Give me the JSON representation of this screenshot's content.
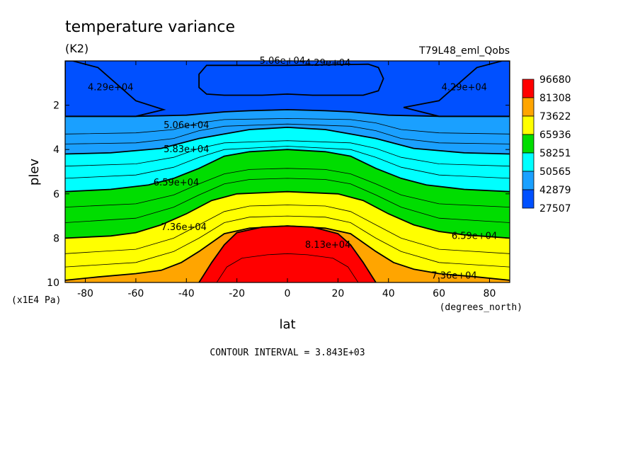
{
  "chart_data": {
    "type": "contour",
    "title": "temperature variance",
    "units": "(K2)",
    "case_name": "T79L48_eml_Qobs",
    "xlabel": "lat",
    "xunits": "(degrees_north)",
    "ylabel": "plev",
    "yunits": "(x1E4 Pa)",
    "xlim": [
      -88,
      88
    ],
    "ylim": [
      10,
      0
    ],
    "x_ticks": [
      -80,
      -60,
      -40,
      -20,
      0,
      20,
      40,
      60,
      80
    ],
    "x_tick_labels": [
      "-80",
      "-60",
      "-40",
      "-20",
      "0",
      "20",
      "40",
      "60",
      "80"
    ],
    "y_ticks": [
      2,
      4,
      6,
      8,
      10
    ],
    "y_tick_labels": [
      "2",
      "4",
      "6",
      "8",
      "10"
    ],
    "colorbar": {
      "labels": [
        "96680",
        "81308",
        "73622",
        "65936",
        "58251",
        "50565",
        "42879",
        "27507"
      ],
      "colors": [
        "#ff0000",
        "#ffa500",
        "#ffff00",
        "#00dd00",
        "#00ffff",
        "#1aa0ff",
        "#0050ff"
      ]
    },
    "contour_interval_text": "CONTOUR INTERVAL = 3.843E+03",
    "contour_labels": [
      {
        "text": "4.29e+04",
        "lat": -70,
        "plev": 1.2
      },
      {
        "text": "5.06e+04",
        "lat": -2,
        "plev": 0.0
      },
      {
        "text": "4.29e+04",
        "lat": 16,
        "plev": 0.1
      },
      {
        "text": "4.29e+04",
        "lat": 70,
        "plev": 1.2
      },
      {
        "text": "5.06e+04",
        "lat": -40,
        "plev": 2.9
      },
      {
        "text": "5.83e+04",
        "lat": -40,
        "plev": 4.0
      },
      {
        "text": "6.59e+04",
        "lat": -44,
        "plev": 5.5
      },
      {
        "text": "7.36e+04",
        "lat": -41,
        "plev": 7.5
      },
      {
        "text": "8.13e+04",
        "lat": 16,
        "plev": 8.3
      },
      {
        "text": "6.59e+04",
        "lat": 74,
        "plev": 7.9
      },
      {
        "text": "7.36e+04",
        "lat": 66,
        "plev": 9.7
      }
    ],
    "bands": [
      {
        "value": 50565,
        "color": "#1aa0ff",
        "boundary": [
          [
            -88,
            2.5
          ],
          [
            -60,
            2.5
          ],
          [
            -40,
            2.45
          ],
          [
            -25,
            2.3
          ],
          [
            -15,
            2.25
          ],
          [
            0,
            2.2
          ],
          [
            15,
            2.25
          ],
          [
            25,
            2.3
          ],
          [
            40,
            2.45
          ],
          [
            60,
            2.5
          ],
          [
            88,
            2.5
          ]
        ]
      },
      {
        "value": 58251,
        "color": "#00ffff",
        "boundary": [
          [
            -88,
            4.2
          ],
          [
            -70,
            4.15
          ],
          [
            -50,
            3.95
          ],
          [
            -35,
            3.5
          ],
          [
            -25,
            3.3
          ],
          [
            -15,
            3.1
          ],
          [
            0,
            3.0
          ],
          [
            15,
            3.1
          ],
          [
            25,
            3.3
          ],
          [
            35,
            3.5
          ],
          [
            50,
            3.95
          ],
          [
            70,
            4.15
          ],
          [
            88,
            4.2
          ]
        ]
      },
      {
        "value": 65936,
        "color": "#00dd00",
        "boundary": [
          [
            -88,
            5.9
          ],
          [
            -70,
            5.8
          ],
          [
            -55,
            5.6
          ],
          [
            -45,
            5.3
          ],
          [
            -35,
            4.85
          ],
          [
            -25,
            4.3
          ],
          [
            -15,
            4.1
          ],
          [
            0,
            4.0
          ],
          [
            15,
            4.1
          ],
          [
            25,
            4.3
          ],
          [
            35,
            4.85
          ],
          [
            45,
            5.3
          ],
          [
            55,
            5.6
          ],
          [
            70,
            5.8
          ],
          [
            88,
            5.9
          ]
        ]
      },
      {
        "value": 73622,
        "color": "#ffff00",
        "boundary": [
          [
            -88,
            8.0
          ],
          [
            -70,
            7.9
          ],
          [
            -60,
            7.75
          ],
          [
            -50,
            7.4
          ],
          [
            -40,
            6.9
          ],
          [
            -30,
            6.3
          ],
          [
            -20,
            6.0
          ],
          [
            0,
            5.9
          ],
          [
            20,
            6.0
          ],
          [
            30,
            6.3
          ],
          [
            40,
            6.9
          ],
          [
            50,
            7.4
          ],
          [
            60,
            7.7
          ],
          [
            70,
            7.85
          ],
          [
            88,
            8.0
          ]
        ]
      },
      {
        "value": 81308,
        "color": "#ffa500",
        "boundary": [
          [
            -88,
            9.9
          ],
          [
            -75,
            9.75
          ],
          [
            -60,
            9.6
          ],
          [
            -50,
            9.45
          ],
          [
            -42,
            9.1
          ],
          [
            -35,
            8.6
          ],
          [
            -25,
            7.8
          ],
          [
            -15,
            7.55
          ],
          [
            0,
            7.45
          ],
          [
            15,
            7.55
          ],
          [
            25,
            7.8
          ],
          [
            35,
            8.6
          ],
          [
            42,
            9.1
          ],
          [
            50,
            9.4
          ],
          [
            60,
            9.6
          ],
          [
            75,
            9.75
          ],
          [
            88,
            9.9
          ]
        ]
      },
      {
        "value": 96680,
        "color": "#ff0000",
        "boundary": [
          [
            -35,
            10.0
          ],
          [
            -30,
            9.1
          ],
          [
            -25,
            8.3
          ],
          [
            -20,
            7.75
          ],
          [
            -10,
            7.5
          ],
          [
            0,
            7.45
          ],
          [
            10,
            7.5
          ],
          [
            20,
            7.8
          ],
          [
            25,
            8.3
          ],
          [
            30,
            9.1
          ],
          [
            35,
            10.0
          ]
        ]
      }
    ],
    "dark_pockets": [
      {
        "value": 42879,
        "color": "#0050ff",
        "outline": [
          [
            -88,
            0.0
          ],
          [
            -88,
            2.5
          ],
          [
            -60,
            2.5
          ],
          [
            -49,
            2.2
          ],
          [
            -60,
            1.8
          ],
          [
            -75,
            0.3
          ],
          [
            -85,
            0.0
          ]
        ]
      },
      {
        "value": 42879,
        "color": "#0050ff",
        "outline": [
          [
            88,
            0.0
          ],
          [
            88,
            2.5
          ],
          [
            60,
            2.5
          ],
          [
            46,
            2.1
          ],
          [
            60,
            1.8
          ],
          [
            75,
            0.3
          ],
          [
            85,
            0.0
          ]
        ]
      },
      {
        "value": 42879,
        "color": "#0050ff",
        "outline": [
          [
            -32,
            0.2
          ],
          [
            -35,
            0.6
          ],
          [
            -35,
            1.2
          ],
          [
            -32,
            1.5
          ],
          [
            -25,
            1.55
          ],
          [
            -10,
            1.55
          ],
          [
            0,
            1.5
          ],
          [
            10,
            1.55
          ],
          [
            30,
            1.55
          ],
          [
            36,
            1.35
          ],
          [
            38,
            0.8
          ],
          [
            36,
            0.3
          ],
          [
            32,
            0.15
          ],
          [
            0,
            0.2
          ],
          [
            -32,
            0.2
          ]
        ]
      }
    ],
    "thin_lines": [
      [
        [
          -88,
          3.3
        ],
        [
          -60,
          3.25
        ],
        [
          -45,
          3.1
        ],
        [
          -35,
          2.8
        ],
        [
          -25,
          2.65
        ],
        [
          0,
          2.6
        ],
        [
          25,
          2.65
        ],
        [
          35,
          2.8
        ],
        [
          45,
          3.1
        ],
        [
          60,
          3.25
        ],
        [
          88,
          3.3
        ]
      ],
      [
        [
          -88,
          3.75
        ],
        [
          -60,
          3.7
        ],
        [
          -45,
          3.5
        ],
        [
          -35,
          3.15
        ],
        [
          -25,
          2.95
        ],
        [
          0,
          2.85
        ],
        [
          25,
          2.95
        ],
        [
          35,
          3.15
        ],
        [
          45,
          3.5
        ],
        [
          60,
          3.7
        ],
        [
          88,
          3.75
        ]
      ],
      [
        [
          -88,
          4.75
        ],
        [
          -60,
          4.65
        ],
        [
          -45,
          4.35
        ],
        [
          -35,
          3.95
        ],
        [
          -25,
          3.7
        ],
        [
          0,
          3.6
        ],
        [
          25,
          3.7
        ],
        [
          35,
          3.95
        ],
        [
          45,
          4.35
        ],
        [
          60,
          4.65
        ],
        [
          88,
          4.75
        ]
      ],
      [
        [
          -88,
          5.3
        ],
        [
          -60,
          5.15
        ],
        [
          -45,
          4.8
        ],
        [
          -35,
          4.35
        ],
        [
          -25,
          4.0
        ],
        [
          0,
          3.85
        ],
        [
          25,
          4.0
        ],
        [
          35,
          4.35
        ],
        [
          45,
          4.8
        ],
        [
          60,
          5.15
        ],
        [
          88,
          5.3
        ]
      ],
      [
        [
          -88,
          6.6
        ],
        [
          -60,
          6.45
        ],
        [
          -45,
          6.05
        ],
        [
          -35,
          5.55
        ],
        [
          -25,
          5.1
        ],
        [
          -15,
          4.9
        ],
        [
          0,
          4.85
        ],
        [
          15,
          4.9
        ],
        [
          25,
          5.1
        ],
        [
          35,
          5.55
        ],
        [
          45,
          6.05
        ],
        [
          60,
          6.45
        ],
        [
          88,
          6.6
        ]
      ],
      [
        [
          -88,
          7.3
        ],
        [
          -60,
          7.1
        ],
        [
          -45,
          6.6
        ],
        [
          -35,
          6.05
        ],
        [
          -25,
          5.55
        ],
        [
          -15,
          5.35
        ],
        [
          0,
          5.3
        ],
        [
          15,
          5.35
        ],
        [
          25,
          5.55
        ],
        [
          35,
          6.05
        ],
        [
          45,
          6.6
        ],
        [
          60,
          7.1
        ],
        [
          88,
          7.3
        ]
      ],
      [
        [
          -88,
          8.7
        ],
        [
          -60,
          8.5
        ],
        [
          -45,
          8.0
        ],
        [
          -35,
          7.4
        ],
        [
          -25,
          6.8
        ],
        [
          -15,
          6.55
        ],
        [
          0,
          6.5
        ],
        [
          15,
          6.55
        ],
        [
          25,
          6.8
        ],
        [
          35,
          7.4
        ],
        [
          45,
          8.0
        ],
        [
          60,
          8.5
        ],
        [
          88,
          8.7
        ]
      ],
      [
        [
          -88,
          9.3
        ],
        [
          -60,
          9.1
        ],
        [
          -45,
          8.6
        ],
        [
          -35,
          8.0
        ],
        [
          -25,
          7.3
        ],
        [
          -15,
          7.05
        ],
        [
          0,
          7.0
        ],
        [
          15,
          7.05
        ],
        [
          25,
          7.3
        ],
        [
          35,
          8.0
        ],
        [
          45,
          8.6
        ],
        [
          60,
          9.1
        ],
        [
          88,
          9.3
        ]
      ],
      [
        [
          -28,
          10.0
        ],
        [
          -24,
          9.3
        ],
        [
          -18,
          8.9
        ],
        [
          -8,
          8.75
        ],
        [
          0,
          8.7
        ],
        [
          8,
          8.75
        ],
        [
          18,
          8.9
        ],
        [
          24,
          9.3
        ],
        [
          28,
          10.0
        ]
      ]
    ]
  }
}
